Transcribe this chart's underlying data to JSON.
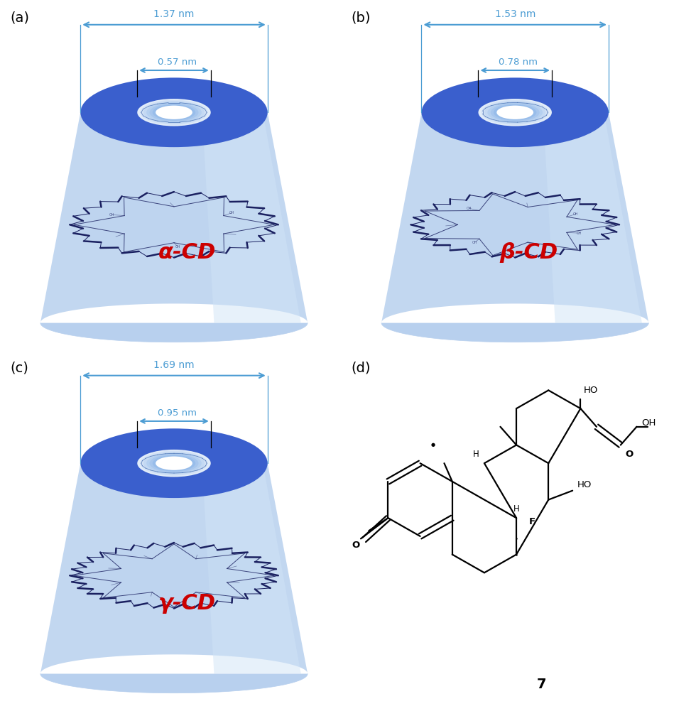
{
  "panels": [
    "a",
    "b",
    "c",
    "d"
  ],
  "cd_data": [
    {
      "label": "a",
      "outer_nm": "1.37 nm",
      "inner_nm": "0.57 nm",
      "name": "α-CD",
      "n_units": 6
    },
    {
      "label": "b",
      "outer_nm": "1.53 nm",
      "inner_nm": "0.78 nm",
      "name": "β-CD",
      "n_units": 7
    },
    {
      "label": "c",
      "outer_nm": "1.69 nm",
      "inner_nm": "0.95 nm",
      "name": "γ-CD",
      "n_units": 8
    }
  ],
  "blue_dark": "#3A5FCD",
  "blue_rim": "#4169E1",
  "blue_body": "#B8D0EE",
  "blue_body2": "#D0E4F7",
  "blue_inner": "#DDEEFF",
  "arrow_color": "#4B9CD3",
  "name_color": "#CC0000",
  "bg_color": "#FFFFFF",
  "panel_label_size": 14,
  "dim_label_size": 10,
  "cd_name_size": 22
}
